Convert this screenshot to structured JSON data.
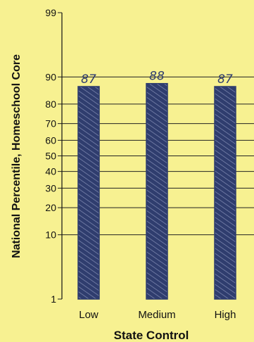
{
  "chart_data": {
    "type": "bar",
    "title": "",
    "xlabel": "State Control",
    "ylabel": "National Percentile, Homeschool Core",
    "categories": [
      "Low",
      "Medium",
      "High"
    ],
    "values": [
      87,
      88,
      87
    ],
    "data_labels": [
      "87",
      "88",
      "87"
    ],
    "y_ticks": [
      1,
      10,
      20,
      30,
      40,
      50,
      60,
      70,
      80,
      90,
      99
    ],
    "y_scale": "normal-probability (percentile)",
    "ylim": [
      1,
      99
    ],
    "grid": true,
    "legend": "none"
  },
  "colors": {
    "background": "#f7f191",
    "bar_fill": "#2f3d6e",
    "bar_hatch": "#8b95bb",
    "gridline": "#222222",
    "data_label": "#2f3d6e"
  }
}
